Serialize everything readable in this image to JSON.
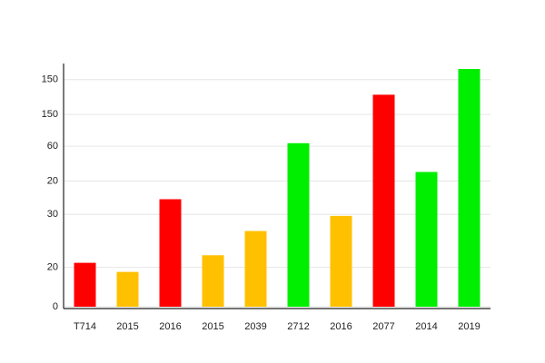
{
  "chart_data": {
    "type": "bar",
    "categories": [
      "T714",
      "2015",
      "2016",
      "2015",
      "2039",
      "2712",
      "2016",
      "2077",
      "2014",
      "2019"
    ],
    "values": [
      29,
      23,
      71,
      34,
      50,
      108,
      60,
      140,
      89,
      157
    ],
    "colors": [
      "#ff0000",
      "#ffc000",
      "#ff0000",
      "#ffc000",
      "#ffc000",
      "#00ee00",
      "#ffc000",
      "#ff0000",
      "#00ee00",
      "#00ee00"
    ],
    "ylim": [
      0,
      160
    ],
    "yticks": [
      0,
      {
        "value": 26,
        "label": "20"
      },
      {
        "value": 61,
        "label": "30"
      },
      {
        "value": 83,
        "label": "20"
      },
      {
        "value": 106,
        "label": "60"
      },
      {
        "value": 127,
        "label": "150"
      },
      150
    ],
    "grid": true
  }
}
